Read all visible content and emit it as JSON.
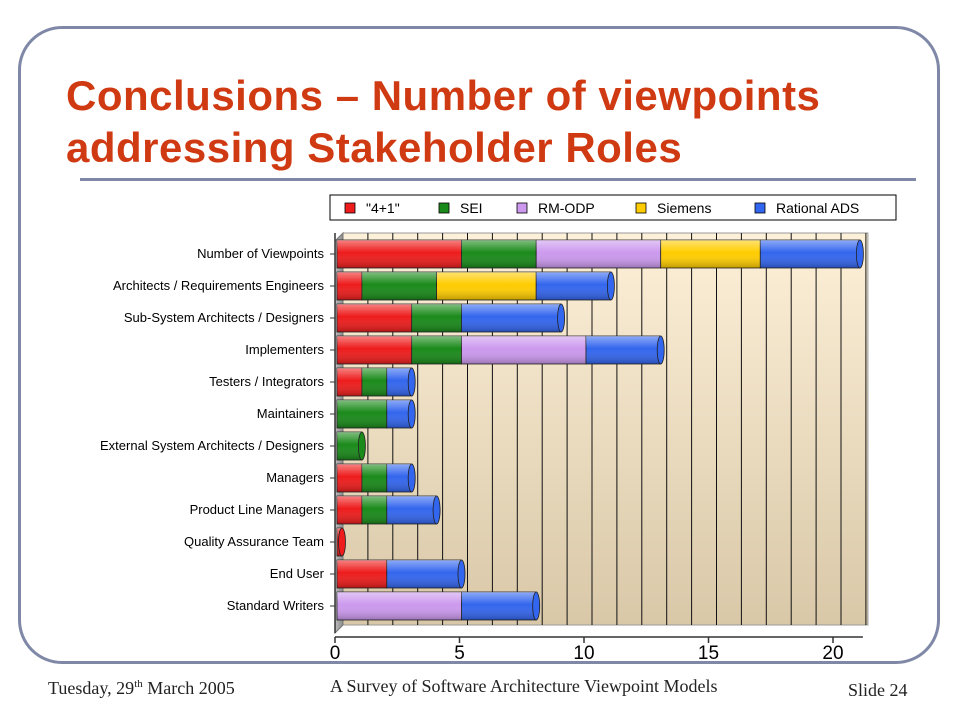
{
  "slide": {
    "title_line1": "Conclusions – Number of viewpoints",
    "title_line2": "addressing Stakeholder Roles",
    "footer_date_prefix": "Tuesday, 29",
    "footer_date_sup": "th",
    "footer_date_suffix": " March 2005",
    "footer_center": "A Survey of Software Architecture Viewpoint Models",
    "footer_slide": "Slide 24"
  },
  "chart_data": {
    "type": "bar",
    "orientation": "horizontal",
    "stacked": true,
    "categories": [
      "Number of Viewpoints",
      "Architects / Requirements Engineers",
      "Sub-System Architects / Designers",
      "Implementers",
      "Testers / Integrators",
      "Maintainers",
      "External System Architects / Designers",
      "Managers",
      "Product Line Managers",
      "Quality Assurance Team",
      "End User",
      "Standard Writers"
    ],
    "series": [
      {
        "name": "\"4+1\"",
        "color": "#ee1c1c",
        "values": [
          5,
          1,
          3,
          3,
          1,
          0,
          0,
          1,
          1,
          0.2,
          2,
          0
        ]
      },
      {
        "name": "SEI",
        "color": "#1a8a1a",
        "values": [
          3,
          3,
          2,
          2,
          1,
          2,
          1,
          1,
          1,
          0,
          0,
          0
        ]
      },
      {
        "name": "RM-ODP",
        "color": "#cc99ee",
        "values": [
          5,
          0,
          0,
          5,
          0,
          0,
          0,
          0,
          0,
          0,
          0,
          5
        ]
      },
      {
        "name": "Siemens",
        "color": "#ffcc00",
        "values": [
          4,
          4,
          0,
          0,
          0,
          0,
          0,
          0,
          0,
          0,
          0,
          0
        ]
      },
      {
        "name": "Rational ADS",
        "color": "#3366ee",
        "values": [
          4,
          3,
          4,
          3,
          1,
          1,
          0,
          1,
          2,
          0,
          3,
          3
        ]
      }
    ],
    "xlim": [
      0,
      21
    ],
    "xticks": [
      0,
      5,
      10,
      15,
      20
    ],
    "grid": "vertical",
    "legend": "top"
  }
}
